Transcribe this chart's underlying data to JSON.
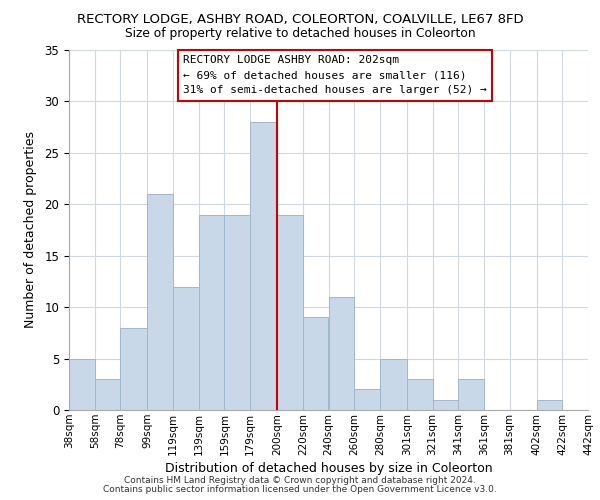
{
  "title_line1": "RECTORY LODGE, ASHBY ROAD, COLEORTON, COALVILLE, LE67 8FD",
  "title_line2": "Size of property relative to detached houses in Coleorton",
  "xlabel": "Distribution of detached houses by size in Coleorton",
  "ylabel": "Number of detached properties",
  "bin_edges": [
    38,
    58,
    78,
    99,
    119,
    139,
    159,
    179,
    200,
    220,
    240,
    260,
    280,
    301,
    321,
    341,
    361,
    381,
    402,
    422,
    442
  ],
  "bin_heights": [
    5,
    3,
    8,
    21,
    12,
    19,
    19,
    28,
    19,
    9,
    11,
    2,
    5,
    3,
    1,
    3,
    0,
    0,
    1,
    0
  ],
  "bar_color": "#c8d8e8",
  "bar_edgecolor": "#a0b8cc",
  "reference_line_x": 200,
  "reference_line_color": "#cc0000",
  "ylim": [
    0,
    35
  ],
  "yticks": [
    0,
    5,
    10,
    15,
    20,
    25,
    30,
    35
  ],
  "tick_labels": [
    "38sqm",
    "58sqm",
    "78sqm",
    "99sqm",
    "119sqm",
    "139sqm",
    "159sqm",
    "179sqm",
    "200sqm",
    "220sqm",
    "240sqm",
    "260sqm",
    "280sqm",
    "301sqm",
    "321sqm",
    "341sqm",
    "361sqm",
    "381sqm",
    "402sqm",
    "422sqm",
    "442sqm"
  ],
  "annotation_title": "RECTORY LODGE ASHBY ROAD: 202sqm",
  "annotation_line1": "← 69% of detached houses are smaller (116)",
  "annotation_line2": "31% of semi-detached houses are larger (52) →",
  "annotation_box_edgecolor": "#cc0000",
  "footnote1": "Contains HM Land Registry data © Crown copyright and database right 2024.",
  "footnote2": "Contains public sector information licensed under the Open Government Licence v3.0.",
  "background_color": "#ffffff",
  "grid_color": "#d0d8e0"
}
